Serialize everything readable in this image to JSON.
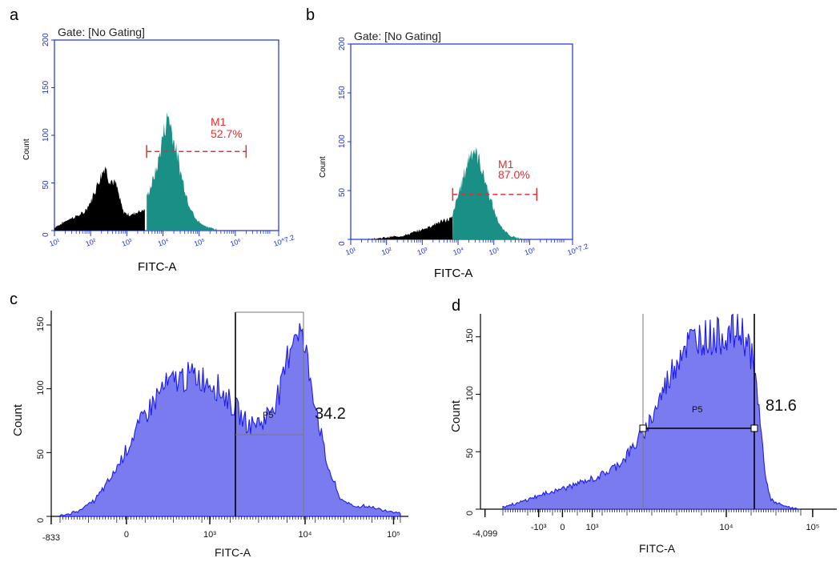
{
  "panels": {
    "a": {
      "letter": "a",
      "gate": "Gate: [No Gating]",
      "ylabel": "Count",
      "xlabel": "FITC-A",
      "yticks": [
        "0",
        "50",
        "100",
        "150",
        "200"
      ],
      "xticks": [
        "10¹",
        "10²",
        "10³",
        "10⁴",
        "10⁵",
        "10⁶",
        "10^7.2"
      ],
      "marker_name": "M1",
      "marker_value": "52.7%"
    },
    "b": {
      "letter": "b",
      "gate": "Gate: [No Gating]",
      "ylabel": "Count",
      "xlabel": "FITC-A",
      "yticks": [
        "0",
        "50",
        "100",
        "150",
        "200"
      ],
      "xticks": [
        "10¹",
        "10²",
        "10³",
        "10⁴",
        "10⁵",
        "10⁶",
        "10^7.2"
      ],
      "marker_name": "M1",
      "marker_value": "87.0%"
    },
    "c": {
      "letter": "c",
      "ylabel": "Count",
      "xlabel": "FITC-A",
      "yticks": [
        "0",
        "50",
        "100",
        "150"
      ],
      "xticks": [
        "-833",
        "0",
        "10³",
        "10⁴",
        "10⁵"
      ],
      "gate_name": "P5",
      "gate_value": "34.2"
    },
    "d": {
      "letter": "d",
      "ylabel": "Count",
      "xlabel": "FITC-A",
      "yticks": [
        "0",
        "50",
        "100",
        "150"
      ],
      "xticks": [
        "-4,099",
        "-10³",
        "0",
        "10³",
        "10⁴",
        "10⁵"
      ],
      "gate_name": "P5",
      "gate_value": "81.6"
    }
  },
  "colors": {
    "axis_blue": "#1a2fe0",
    "teal": "#1a8f86",
    "black_fill": "#000000",
    "marker_red": "#e03030",
    "purple_fill": "#7b7bf0",
    "purple_line": "#1c1cf0"
  },
  "chart_data": [
    {
      "type": "area",
      "panel": "a",
      "x_scale": "log",
      "x_range_log10": [
        1,
        7.2
      ],
      "ylim": [
        0,
        200
      ],
      "marker": {
        "label": "M1",
        "percent": 52.7,
        "x_start_log10": 3.55,
        "x_end_log10": 6.3,
        "y": 83
      },
      "series": [
        {
          "color": "black",
          "points": [
            [
              1.0,
              3
            ],
            [
              1.4,
              12
            ],
            [
              1.8,
              18
            ],
            [
              2.0,
              30
            ],
            [
              2.2,
              50
            ],
            [
              2.4,
              68
            ],
            [
              2.5,
              55
            ],
            [
              2.7,
              48
            ],
            [
              2.9,
              20
            ],
            [
              3.1,
              16
            ],
            [
              3.3,
              20
            ],
            [
              3.5,
              22
            ]
          ]
        },
        {
          "color": "teal",
          "points": [
            [
              3.55,
              35
            ],
            [
              3.7,
              50
            ],
            [
              3.85,
              68
            ],
            [
              4.0,
              100
            ],
            [
              4.15,
              122
            ],
            [
              4.3,
              95
            ],
            [
              4.5,
              60
            ],
            [
              4.7,
              30
            ],
            [
              4.9,
              12
            ],
            [
              5.2,
              4
            ],
            [
              5.5,
              1
            ]
          ]
        }
      ]
    },
    {
      "type": "area",
      "panel": "b",
      "x_scale": "log",
      "x_range_log10": [
        1,
        7.2
      ],
      "ylim": [
        0,
        200
      ],
      "marker": {
        "label": "M1",
        "percent": 87.0,
        "x_start_log10": 3.85,
        "x_end_log10": 6.2,
        "y": 46
      },
      "series": [
        {
          "color": "black",
          "points": [
            [
              1.5,
              0
            ],
            [
              2.0,
              2
            ],
            [
              2.5,
              4
            ],
            [
              3.0,
              10
            ],
            [
              3.5,
              18
            ],
            [
              3.85,
              22
            ]
          ]
        },
        {
          "color": "teal",
          "points": [
            [
              3.85,
              25
            ],
            [
              4.0,
              45
            ],
            [
              4.2,
              70
            ],
            [
              4.35,
              90
            ],
            [
              4.45,
              92
            ],
            [
              4.6,
              80
            ],
            [
              4.8,
              55
            ],
            [
              5.0,
              30
            ],
            [
              5.2,
              12
            ],
            [
              5.5,
              3
            ],
            [
              5.8,
              0
            ]
          ]
        }
      ]
    },
    {
      "type": "area",
      "panel": "c",
      "ylim": [
        0,
        160
      ],
      "gate": {
        "label": "P5",
        "value": 34.2
      },
      "series": [
        {
          "color": "purple",
          "points": [
            [
              0,
              0
            ],
            [
              0.05,
              4
            ],
            [
              0.1,
              12
            ],
            [
              0.15,
              30
            ],
            [
              0.2,
              55
            ],
            [
              0.25,
              80
            ],
            [
              0.3,
              100
            ],
            [
              0.35,
              108
            ],
            [
              0.4,
              110
            ],
            [
              0.45,
              105
            ],
            [
              0.5,
              90
            ],
            [
              0.55,
              72
            ],
            [
              0.6,
              75
            ],
            [
              0.65,
              100
            ],
            [
              0.68,
              140
            ],
            [
              0.7,
              150
            ],
            [
              0.72,
              130
            ],
            [
              0.75,
              90
            ],
            [
              0.78,
              45
            ],
            [
              0.82,
              15
            ],
            [
              0.86,
              8
            ],
            [
              0.9,
              8
            ],
            [
              0.95,
              5
            ],
            [
              1.0,
              3
            ]
          ]
        }
      ]
    },
    {
      "type": "area",
      "panel": "d",
      "ylim": [
        0,
        170
      ],
      "gate": {
        "label": "P5",
        "value": 81.6
      },
      "series": [
        {
          "color": "purple",
          "points": [
            [
              0,
              2
            ],
            [
              0.05,
              5
            ],
            [
              0.1,
              10
            ],
            [
              0.15,
              14
            ],
            [
              0.2,
              18
            ],
            [
              0.25,
              22
            ],
            [
              0.3,
              26
            ],
            [
              0.35,
              32
            ],
            [
              0.4,
              42
            ],
            [
              0.45,
              58
            ],
            [
              0.5,
              80
            ],
            [
              0.55,
              110
            ],
            [
              0.6,
              140
            ],
            [
              0.65,
              150
            ],
            [
              0.7,
              150
            ],
            [
              0.75,
              152
            ],
            [
              0.8,
              155
            ],
            [
              0.83,
              140
            ],
            [
              0.86,
              90
            ],
            [
              0.88,
              30
            ],
            [
              0.9,
              8
            ],
            [
              0.93,
              4
            ],
            [
              0.97,
              1
            ],
            [
              1.0,
              0
            ]
          ]
        }
      ]
    }
  ]
}
